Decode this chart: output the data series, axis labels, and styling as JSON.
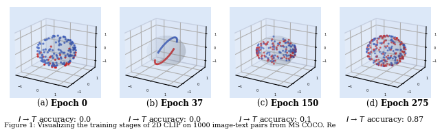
{
  "panels": [
    {
      "label": "(a)",
      "epoch": "Epoch 0",
      "accuracy": "0.0"
    },
    {
      "label": "(b)",
      "epoch": "Epoch 37",
      "accuracy": "0.0"
    },
    {
      "label": "(c)",
      "epoch": "Epoch 150",
      "accuracy": "0.1"
    },
    {
      "label": "(d)",
      "epoch": "Epoch 275",
      "accuracy": "0.87"
    }
  ],
  "caption": "Figure 1: Visualizing the training stages of 2D CLIP on 1000 image-text pairs from MS COCO. Re",
  "figure_bg": "#ffffff",
  "sphere_fill": "#dce8f8",
  "sphere_edge": "#a0b0cc",
  "blue_dot": "#3355bb",
  "red_dot": "#cc2222",
  "label_fontsize": 8.5,
  "caption_fontsize": 7.0
}
